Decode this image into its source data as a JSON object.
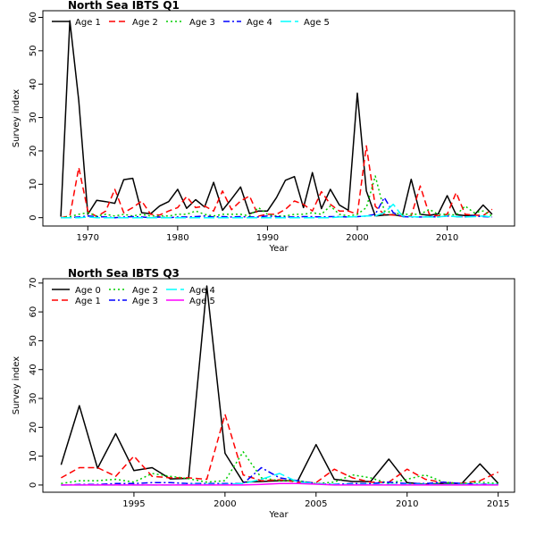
{
  "chart_data": [
    {
      "type": "line",
      "title": "North Sea IBTS Q1",
      "xlabel": "Year",
      "ylabel": "Survey index",
      "xlim": [
        1965.0,
        2017.5
      ],
      "ylim": [
        -2.5,
        62.0
      ],
      "x_ticks": [
        1970,
        1980,
        1990,
        2000,
        2010
      ],
      "y_ticks": [
        0,
        10,
        20,
        30,
        40,
        50,
        60
      ],
      "legend": {
        "position": "top-left",
        "layout": "horizontal"
      },
      "x": [
        1967,
        1968,
        1969,
        1970,
        1971,
        1972,
        1973,
        1974,
        1975,
        1976,
        1977,
        1978,
        1979,
        1980,
        1981,
        1982,
        1983,
        1984,
        1985,
        1986,
        1987,
        1988,
        1989,
        1990,
        1991,
        1992,
        1993,
        1994,
        1995,
        1996,
        1997,
        1998,
        1999,
        2000,
        2001,
        2002,
        2003,
        2004,
        2005,
        2006,
        2007,
        2008,
        2009,
        2010,
        2011,
        2012,
        2013,
        2014,
        2015
      ],
      "series": [
        {
          "name": "Age 1",
          "color": "#000000",
          "dash": "solid",
          "values": [
            0.3,
            59,
            35,
            1,
            5.2,
            4.8,
            4.3,
            11.4,
            11.8,
            1.5,
            1.2,
            3.5,
            4.8,
            8.5,
            2.8,
            5.4,
            3.2,
            10.6,
            2.2,
            5.6,
            9.2,
            1.2,
            2,
            2,
            6,
            11.2,
            12.3,
            3,
            13.5,
            2.7,
            8.5,
            3.8,
            2.2,
            37.3,
            8,
            0.5,
            0.8,
            0.9,
            0.4,
            11.5,
            1,
            0.7,
            1.1,
            6.6,
            0.9,
            0.6,
            0.7,
            3.8,
            1
          ]
        },
        {
          "name": "Age 2",
          "color": "#ff0000",
          "dash": "dashed",
          "values": [
            0,
            0.5,
            15,
            2,
            0.3,
            2,
            8.5,
            1.5,
            3,
            5,
            1,
            0.8,
            2,
            3,
            6.3,
            3,
            3.5,
            2,
            8,
            2.4,
            5,
            6.5,
            0.5,
            1,
            1,
            2.5,
            5,
            4,
            2,
            7.8,
            4,
            2,
            2,
            1,
            21.5,
            3.4,
            1,
            0.8,
            0.5,
            0.5,
            9.5,
            1,
            0.5,
            1,
            7.5,
            1,
            0.8,
            0.6,
            2.5
          ]
        },
        {
          "name": "Age 3",
          "color": "#00cd00",
          "dash": "dotted",
          "values": [
            0,
            0.3,
            1,
            1.5,
            0.5,
            1,
            0.5,
            1,
            0.5,
            1,
            0.5,
            0.5,
            0.5,
            1,
            1,
            2,
            1,
            0.5,
            1,
            1,
            1,
            0.5,
            3,
            1,
            0.5,
            0.5,
            1,
            1,
            1.5,
            1,
            3.5,
            1,
            0.5,
            1,
            3,
            12.5,
            2,
            1.5,
            1,
            1,
            1,
            2.5,
            1,
            1,
            0.8,
            3.5,
            1.5,
            2,
            0.5
          ]
        },
        {
          "name": "Age 4",
          "color": "#0000ff",
          "dash": "dashdot",
          "values": [
            0,
            0,
            0.2,
            0.5,
            0.3,
            0.2,
            0,
            0.2,
            0.3,
            0.2,
            0,
            0.2,
            0,
            0.2,
            0.2,
            0.3,
            0.5,
            0.2,
            0.3,
            0.2,
            0.3,
            0.2,
            0.2,
            0.5,
            0.3,
            0.2,
            0.2,
            0.3,
            0.3,
            0.2,
            0.3,
            0.3,
            0.2,
            0.3,
            0.5,
            1,
            6,
            1.5,
            0.3,
            0.2,
            0.2,
            0.3,
            0.2,
            0.5,
            0.3,
            0.2,
            0.5,
            0.3,
            0.2
          ]
        },
        {
          "name": "Age 5",
          "color": "#00ffff",
          "dash": "longdash",
          "values": [
            0,
            0,
            0,
            0.2,
            0,
            0,
            0,
            0,
            0,
            0,
            0,
            0,
            0,
            0,
            0,
            0,
            0,
            0,
            0,
            0,
            0,
            0,
            0,
            0,
            0,
            0,
            0,
            0,
            0,
            0,
            0,
            0.2,
            0.2,
            0.3,
            0.5,
            0.5,
            1.5,
            4,
            0.5,
            0.3,
            0.2,
            0.2,
            0.2,
            0.5,
            0.3,
            0.2,
            0.3,
            0.5,
            0.2
          ]
        }
      ]
    },
    {
      "type": "line",
      "title": "North Sea IBTS Q3",
      "xlabel": "Year",
      "ylabel": "Survey index",
      "xlim": [
        1990.0,
        2015.9
      ],
      "ylim": [
        -2.5,
        71.5
      ],
      "x_ticks": [
        1995,
        2000,
        2005,
        2010,
        2015
      ],
      "y_ticks": [
        0,
        10,
        20,
        30,
        40,
        50,
        60,
        70
      ],
      "legend": {
        "position": "top-left",
        "layout": "two-row"
      },
      "x": [
        1991,
        1992,
        1993,
        1994,
        1995,
        1996,
        1997,
        1998,
        1999,
        2000,
        2001,
        2002,
        2003,
        2004,
        2005,
        2006,
        2007,
        2008,
        2009,
        2010,
        2011,
        2012,
        2013,
        2014,
        2015
      ],
      "series": [
        {
          "name": "Age 0",
          "color": "#000000",
          "dash": "solid",
          "values": [
            7,
            27.5,
            5.8,
            17.8,
            5,
            6,
            2.1,
            2.3,
            69,
            11,
            1,
            1.2,
            1.5,
            1.5,
            14,
            2,
            1.2,
            1.2,
            9,
            0.8,
            0.3,
            0.6,
            0.5,
            7.3,
            0.6
          ]
        },
        {
          "name": "Age 1",
          "color": "#ff0000",
          "dash": "dashed",
          "values": [
            2.5,
            6,
            6,
            3,
            10,
            3,
            2.5,
            2.5,
            2,
            24.5,
            3.5,
            1.5,
            1.8,
            1,
            0.8,
            5.5,
            2.5,
            1,
            1,
            5.5,
            2,
            0.8,
            0.6,
            1.5,
            4.5
          ]
        },
        {
          "name": "Age 2",
          "color": "#00cd00",
          "dash": "dotted",
          "values": [
            0.5,
            1.5,
            1.5,
            2,
            1,
            4,
            3,
            2.2,
            1,
            1.5,
            11.5,
            2.5,
            1.5,
            1.5,
            0.5,
            1,
            3.5,
            2.5,
            0.5,
            2,
            3.5,
            1,
            0.5,
            1,
            0.5
          ]
        },
        {
          "name": "Age 3",
          "color": "#0000ff",
          "dash": "dashdot",
          "values": [
            0,
            0.2,
            0.2,
            0.5,
            0.5,
            0.8,
            0.8,
            0.5,
            0.5,
            0.5,
            0.5,
            6,
            2.5,
            1.5,
            0.5,
            0.3,
            0.5,
            0.5,
            1,
            0.5,
            0.5,
            1,
            0.5,
            0.3,
            0.2
          ]
        },
        {
          "name": "Age 4",
          "color": "#00ffff",
          "dash": "longdash",
          "values": [
            0,
            0,
            0,
            0,
            0,
            0,
            0,
            0.2,
            0.2,
            0.2,
            0.5,
            2,
            4,
            1,
            0.5,
            0.2,
            0.2,
            0.2,
            0.2,
            0.2,
            0.2,
            0.2,
            0.2,
            0.2,
            0.2
          ]
        },
        {
          "name": "Age 5",
          "color": "#ff00ff",
          "dash": "solid",
          "values": [
            0,
            0,
            0,
            0,
            0,
            0,
            0,
            0,
            0,
            0,
            0,
            0.2,
            0.5,
            0.5,
            0.3,
            0,
            0,
            0,
            0,
            0,
            0,
            0,
            0,
            0,
            0
          ]
        }
      ]
    }
  ]
}
